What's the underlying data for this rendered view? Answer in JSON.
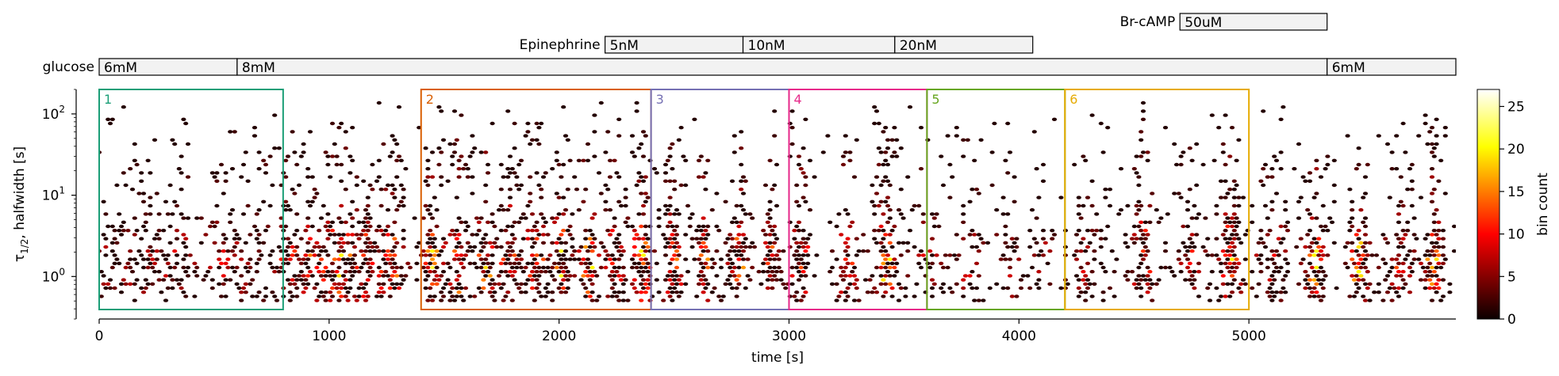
{
  "chart_data": {
    "type": "heatmap",
    "subtype": "hexbin",
    "title": "",
    "xlabel": "time [s]",
    "ylabel": "τ1/2, halfwidth [s]",
    "ylabel_parts": {
      "tau": "τ",
      "sub": "1/2",
      "rest": ", halfwidth [s]"
    },
    "xlim": [
      0,
      5900
    ],
    "ylim": [
      0.3,
      200
    ],
    "yscale": "log",
    "xticks": [
      0,
      1000,
      2000,
      3000,
      4000,
      5000
    ],
    "xtick_labels": [
      "0",
      "1000",
      "2000",
      "3000",
      "4000",
      "5000"
    ],
    "yticks": [
      1,
      10,
      100
    ],
    "ytick_labels": [
      {
        "base": "10",
        "exp": "0"
      },
      {
        "base": "10",
        "exp": "1"
      },
      {
        "base": "10",
        "exp": "2"
      }
    ],
    "colorbar": {
      "label": "bin count",
      "colormap": "hot",
      "range": [
        0,
        27
      ],
      "ticks": [
        0,
        5,
        10,
        15,
        20,
        25
      ],
      "tick_labels": [
        "0",
        "5",
        "10",
        "15",
        "20",
        "25"
      ]
    },
    "density_bands": [
      {
        "x": 5,
        "w": 70,
        "d": 0.35
      },
      {
        "x": 140,
        "w": 60,
        "d": 0.25
      },
      {
        "x": 250,
        "w": 80,
        "d": 0.3
      },
      {
        "x": 380,
        "w": 70,
        "d": 0.35
      },
      {
        "x": 500,
        "w": 50,
        "d": 0.3
      },
      {
        "x": 590,
        "w": 60,
        "d": 0.4
      },
      {
        "x": 700,
        "w": 50,
        "d": 0.3
      },
      {
        "x": 820,
        "w": 60,
        "d": 0.5
      },
      {
        "x": 930,
        "w": 60,
        "d": 0.6
      },
      {
        "x": 1050,
        "w": 60,
        "d": 0.9
      },
      {
        "x": 1160,
        "w": 50,
        "d": 0.7
      },
      {
        "x": 1270,
        "w": 50,
        "d": 0.95
      },
      {
        "x": 1450,
        "w": 40,
        "d": 1.0
      },
      {
        "x": 1560,
        "w": 40,
        "d": 1.0
      },
      {
        "x": 1680,
        "w": 40,
        "d": 0.9
      },
      {
        "x": 1790,
        "w": 40,
        "d": 1.0
      },
      {
        "x": 1900,
        "w": 40,
        "d": 0.9
      },
      {
        "x": 2010,
        "w": 40,
        "d": 1.0
      },
      {
        "x": 2130,
        "w": 40,
        "d": 1.0
      },
      {
        "x": 2250,
        "w": 40,
        "d": 0.9
      },
      {
        "x": 2360,
        "w": 40,
        "d": 1.0
      },
      {
        "x": 2500,
        "w": 40,
        "d": 0.95
      },
      {
        "x": 2630,
        "w": 40,
        "d": 0.8
      },
      {
        "x": 2780,
        "w": 40,
        "d": 0.95
      },
      {
        "x": 2920,
        "w": 30,
        "d": 0.7
      },
      {
        "x": 3050,
        "w": 40,
        "d": 0.85
      },
      {
        "x": 3250,
        "w": 40,
        "d": 0.7
      },
      {
        "x": 3420,
        "w": 50,
        "d": 1.0
      },
      {
        "x": 3600,
        "w": 60,
        "d": 0.4
      },
      {
        "x": 3780,
        "w": 60,
        "d": 0.45
      },
      {
        "x": 3950,
        "w": 50,
        "d": 0.4
      },
      {
        "x": 4100,
        "w": 50,
        "d": 0.35
      },
      {
        "x": 4300,
        "w": 60,
        "d": 0.4
      },
      {
        "x": 4540,
        "w": 40,
        "d": 1.0
      },
      {
        "x": 4750,
        "w": 60,
        "d": 0.5
      },
      {
        "x": 4920,
        "w": 40,
        "d": 1.0
      },
      {
        "x": 5100,
        "w": 70,
        "d": 0.5
      },
      {
        "x": 5290,
        "w": 40,
        "d": 1.0
      },
      {
        "x": 5480,
        "w": 40,
        "d": 1.0
      },
      {
        "x": 5650,
        "w": 60,
        "d": 0.6
      },
      {
        "x": 5800,
        "w": 40,
        "d": 1.0
      }
    ],
    "windows": [
      {
        "label": "1",
        "x0": 0,
        "x1": 800,
        "color": "#1b9e77"
      },
      {
        "label": "2",
        "x0": 1400,
        "x1": 2400,
        "color": "#d95f02"
      },
      {
        "label": "3",
        "x0": 2400,
        "x1": 3000,
        "color": "#7570b3"
      },
      {
        "label": "4",
        "x0": 3000,
        "x1": 3600,
        "color": "#e7298a"
      },
      {
        "label": "5",
        "x0": 3600,
        "x1": 4200,
        "color": "#66a61e"
      },
      {
        "label": "6",
        "x0": 4200,
        "x1": 5000,
        "color": "#e6ab02"
      }
    ],
    "protocol": [
      {
        "name": "Br-cAMP",
        "segments": [
          {
            "label": "50uM",
            "start": 4700,
            "end": 5340
          }
        ]
      },
      {
        "name": "Epinephrine",
        "segments": [
          {
            "label": "5nM",
            "start": 2200,
            "end": 2800
          },
          {
            "label": "10nM",
            "start": 2800,
            "end": 3460
          },
          {
            "label": "20nM",
            "start": 3460,
            "end": 4060
          }
        ]
      },
      {
        "name": "glucose",
        "segments": [
          {
            "label": "6mM",
            "start": 0,
            "end": 600
          },
          {
            "label": "8mM",
            "start": 600,
            "end": 5340
          },
          {
            "label": "6mM",
            "start": 5340,
            "end": 5900
          }
        ]
      }
    ],
    "protocol_fill": "#f2f2f2"
  }
}
